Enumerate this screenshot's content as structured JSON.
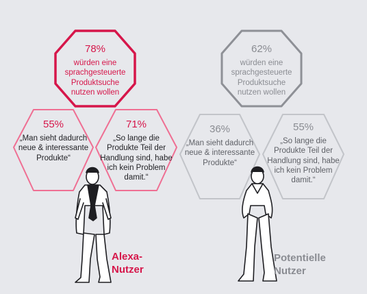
{
  "colors": {
    "accent": "#d6164a",
    "grey_border": "#8e9096",
    "light_grey_border": "#bfc1c6",
    "background": "#e7e8ec"
  },
  "alexa": {
    "label": "Alexa-\nNutzer",
    "top": {
      "percent": "78%",
      "text": "würden eine\nsprachgesteuerte\nProduktsuche\nnutzen wollen"
    },
    "left": {
      "percent": "55%",
      "text": "„Man sieht dadurch\nneue & interessante\nProdukte“"
    },
    "right": {
      "percent": "71%",
      "text": "„So lange die\nProdukte Teil der\nHandlung sind, habe\nich kein Problem\ndamit.“"
    }
  },
  "potential": {
    "label": "Potentielle\nNutzer",
    "top": {
      "percent": "62%",
      "text": "würden eine\nsprachgesteuerte\nProduktsuche\nnutzen wollen"
    },
    "left": {
      "percent": "36%",
      "text": "„Man sieht dadurch\nneue & interessante\nProdukte“"
    },
    "right": {
      "percent": "55%",
      "text": "„So lange die\nProdukte Teil der\nHandlung sind, habe\nich kein Problem\ndamit.“"
    }
  }
}
